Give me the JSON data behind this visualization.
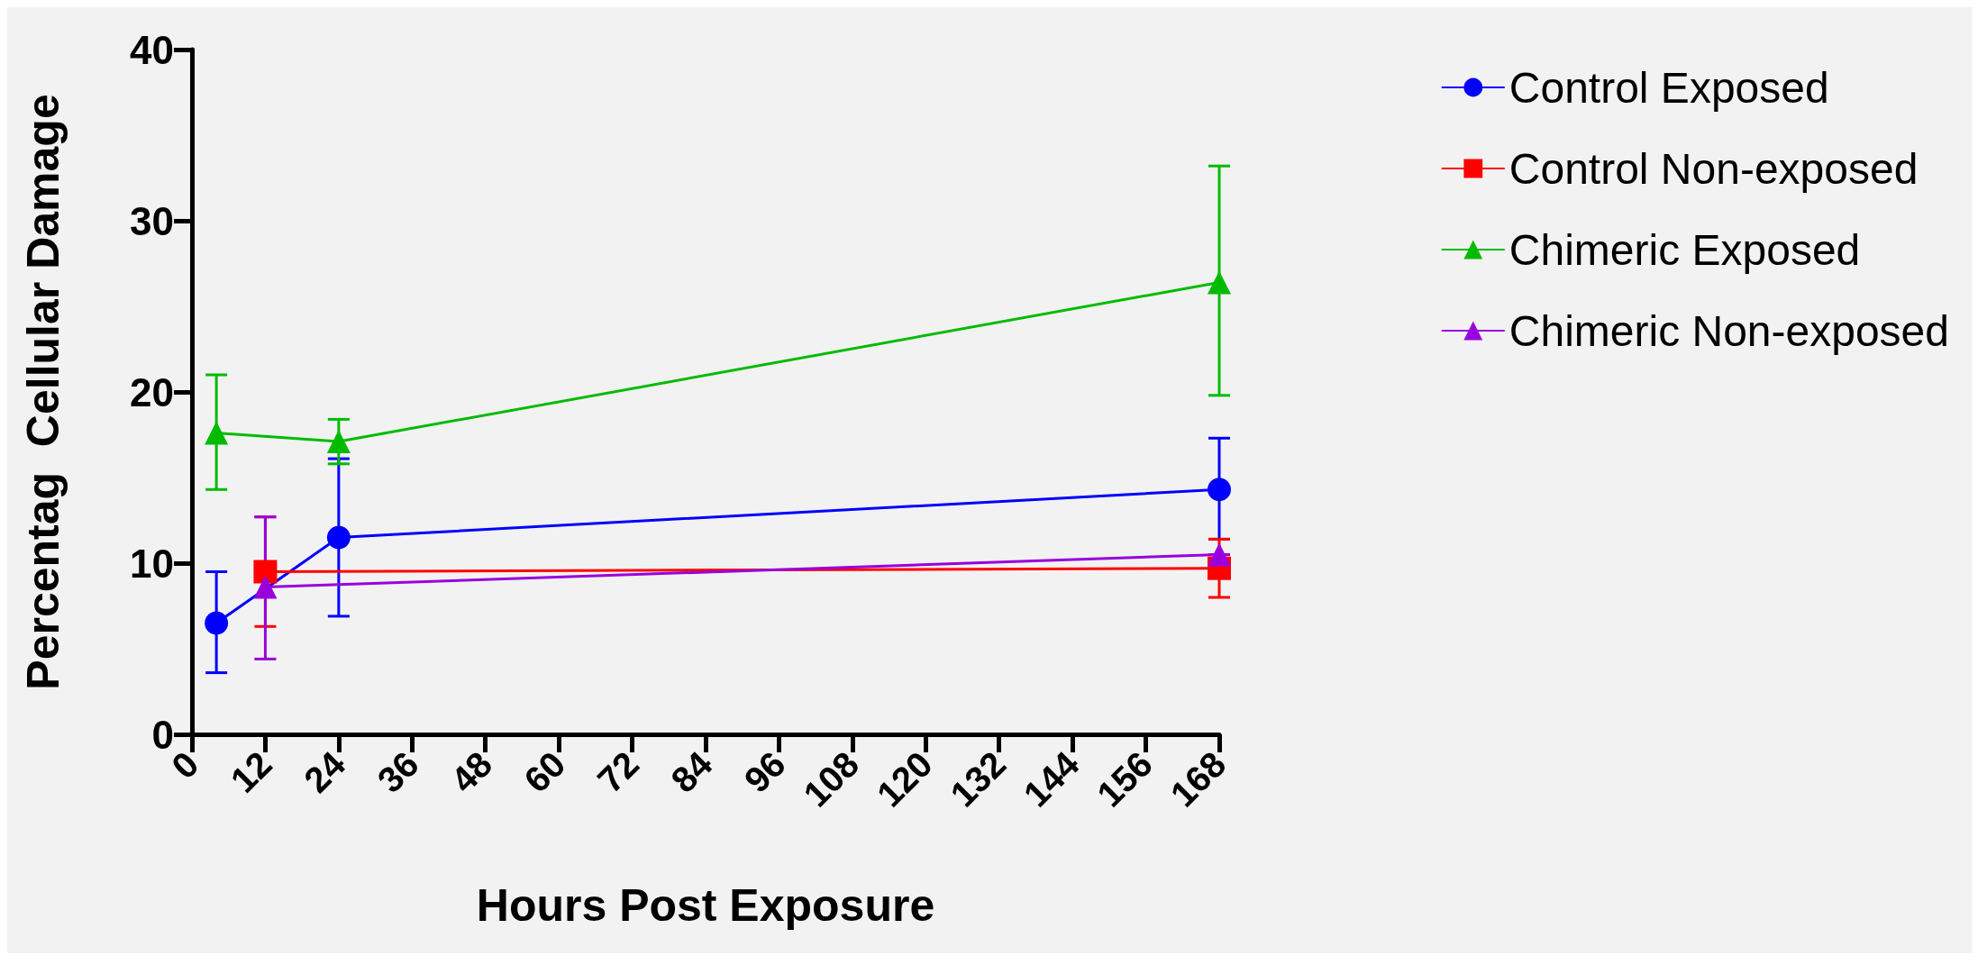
{
  "chart_data": {
    "type": "line",
    "xlabel": "Hours Post Exposure",
    "ylabel": "Percentag  Cellular Damage",
    "xlim": [
      0,
      168
    ],
    "xticks": [
      0,
      12,
      24,
      36,
      48,
      60,
      72,
      84,
      96,
      108,
      120,
      132,
      144,
      156,
      168
    ],
    "ylim": [
      0,
      40
    ],
    "yticks": [
      0,
      10,
      20,
      30,
      40
    ],
    "grid": false,
    "legend": "right",
    "series": [
      {
        "name": "Control Exposed",
        "color": "#0000ff",
        "marker": "circle",
        "x": [
          4,
          24,
          168
        ],
        "values": [
          6.5,
          11.5,
          14.3
        ],
        "errors": [
          [
            3.6,
            9.5
          ],
          [
            6.9,
            16.1
          ],
          [
            11.4,
            17.3
          ]
        ]
      },
      {
        "name": "Control Non-exposed",
        "color": "#ff0000",
        "marker": "square",
        "x": [
          12,
          168
        ],
        "values": [
          9.5,
          9.7
        ],
        "errors": [
          [
            6.3,
            12.7
          ],
          [
            8.0,
            11.4
          ]
        ]
      },
      {
        "name": "Chimeric Exposed",
        "color": "#00bb00",
        "marker": "triangle",
        "x": [
          4,
          24,
          168
        ],
        "values": [
          17.6,
          17.1,
          26.4
        ],
        "errors": [
          [
            14.3,
            21.0
          ],
          [
            15.8,
            18.4
          ],
          [
            19.8,
            33.2
          ]
        ]
      },
      {
        "name": "Chimeric Non-exposed",
        "color": "#9900dd",
        "marker": "triangle",
        "x": [
          12,
          168
        ],
        "values": [
          8.6,
          10.5
        ],
        "errors": [
          [
            4.4,
            12.7
          ],
          null
        ]
      }
    ]
  }
}
